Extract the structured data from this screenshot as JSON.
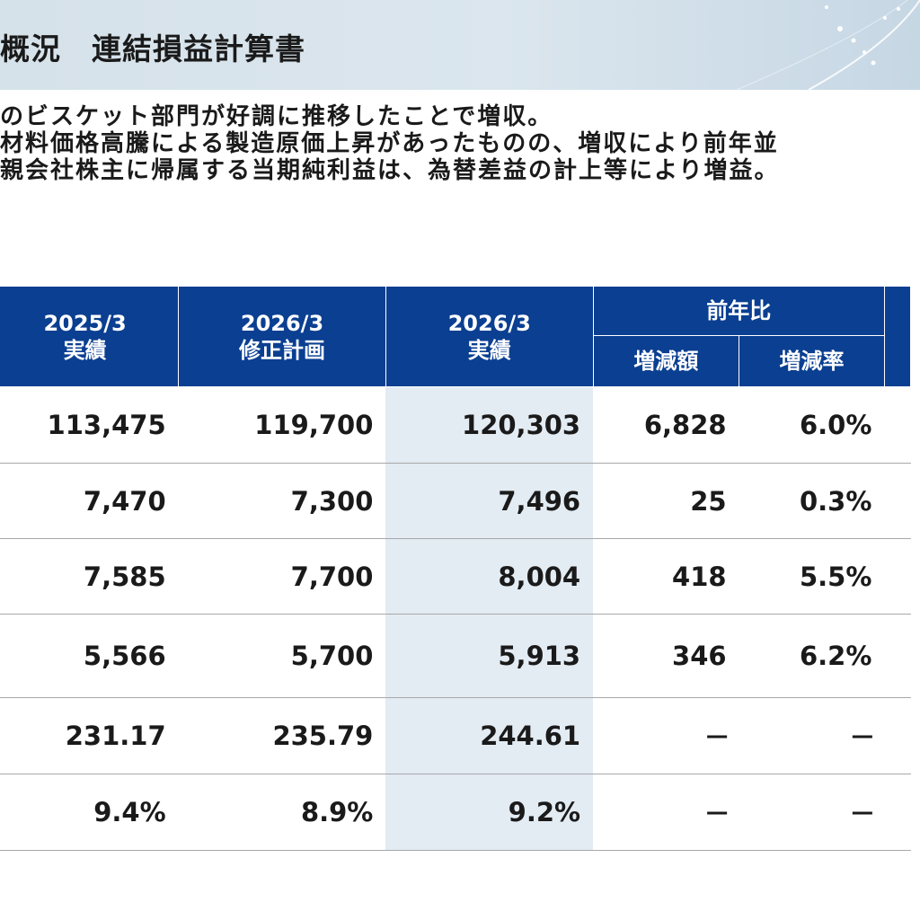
{
  "header": {
    "title": "概況　連結損益計算書"
  },
  "summary": {
    "lines": [
      "のビスケット部門が好調に推移したことで増収。",
      "材料価格高騰による製造原価上昇があったものの、増収により前年並",
      "親会社株主に帰属する当期純利益は、為替差益の計上等により増益。"
    ]
  },
  "table": {
    "columns": [
      {
        "year": "2025/3",
        "label": "実績"
      },
      {
        "year": "2026/3",
        "label": "修正計画"
      },
      {
        "year": "2026/3",
        "label": "実績"
      }
    ],
    "group_label": "前年比",
    "sub_columns": [
      "増減額",
      "増減率"
    ],
    "rows": [
      {
        "c1": "113,475",
        "c2": "119,700",
        "c3": "120,303",
        "diff": "6,828",
        "rate": "6.0%"
      },
      {
        "c1": "7,470",
        "c2": "7,300",
        "c3": "7,496",
        "diff": "25",
        "rate": "0.3%"
      },
      {
        "c1": "7,585",
        "c2": "7,700",
        "c3": "8,004",
        "diff": "418",
        "rate": "5.5%"
      },
      {
        "c1": "5,566",
        "c2": "5,700",
        "c3": "5,913",
        "diff": "346",
        "rate": "6.2%"
      },
      {
        "c1": "231.17",
        "c2": "235.79",
        "c3": "244.61",
        "diff": "－",
        "rate": "－"
      },
      {
        "c1": "9.4%",
        "c2": "8.9%",
        "c3": "9.2%",
        "diff": "－",
        "rate": "－"
      }
    ]
  },
  "colors": {
    "header_navy": "#0a3f91",
    "highlight_column": "#e3ebf3",
    "title_band": "#d6e2ea"
  }
}
